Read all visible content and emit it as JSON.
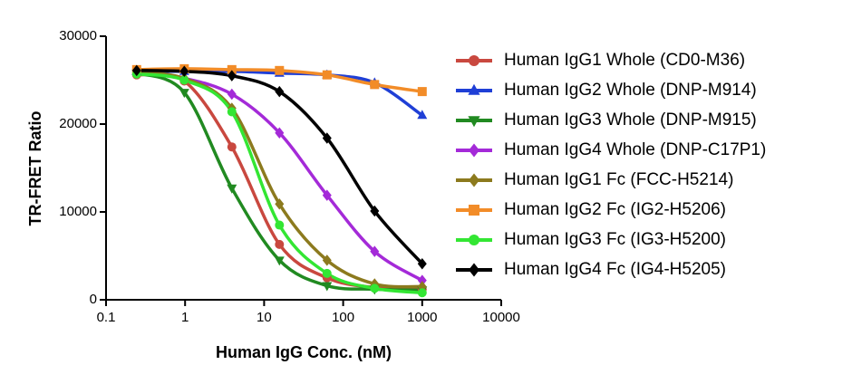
{
  "chart_data": {
    "type": "scatter",
    "x_label": "Human IgG Conc. (nM)",
    "y_label": "TR-FRET Ratio",
    "x": [
      0.244,
      0.977,
      3.906,
      15.625,
      62.5,
      250,
      1000
    ],
    "xlim": [
      0.1,
      10000
    ],
    "xticks": [
      0.1,
      1,
      10,
      100,
      1000,
      10000
    ],
    "xscale": "log",
    "ylim": [
      0,
      30000
    ],
    "yticks": [
      0,
      10000,
      20000,
      30000
    ],
    "series": [
      {
        "name": "Human IgG1 Whole (CD0-M36)",
        "color": "#c9483f",
        "marker": "circle",
        "values": [
          25600,
          24900,
          17400,
          6300,
          2500,
          1400,
          1200
        ]
      },
      {
        "name": "Human IgG2 Whole (DNP-M914)",
        "color": "#1f3fd6",
        "marker": "triangle-up",
        "values": [
          26000,
          26000,
          26000,
          25800,
          25600,
          24700,
          21000
        ]
      },
      {
        "name": "Human IgG3 Whole (DNP-M915)",
        "color": "#218a21",
        "marker": "triangle-down",
        "values": [
          25800,
          23600,
          12700,
          4500,
          1600,
          1200,
          1100
        ]
      },
      {
        "name": "Human IgG4 Whole (DNP-C17P1)",
        "color": "#a42ad8",
        "marker": "diamond",
        "values": [
          25800,
          25200,
          23400,
          19000,
          11900,
          5500,
          2200
        ]
      },
      {
        "name": "Human IgG1 Fc (FCC-H5214)",
        "color": "#8c7a1e",
        "marker": "diamond",
        "values": [
          25900,
          25200,
          21800,
          10900,
          4500,
          1800,
          1500
        ]
      },
      {
        "name": "Human IgG2 Fc (IG2-H5206)",
        "color": "#f28c28",
        "marker": "square",
        "values": [
          26200,
          26300,
          26200,
          26100,
          25600,
          24500,
          23700
        ]
      },
      {
        "name": "Human IgG3 Fc (IG3-H5200)",
        "color": "#33e633",
        "marker": "circle",
        "values": [
          25700,
          25000,
          21400,
          8500,
          3000,
          1300,
          800
        ]
      },
      {
        "name": "Human IgG4 Fc (IG4-H5205)",
        "color": "#000000",
        "marker": "diamond",
        "values": [
          26100,
          26000,
          25500,
          23700,
          18400,
          10100,
          4100
        ]
      }
    ]
  }
}
